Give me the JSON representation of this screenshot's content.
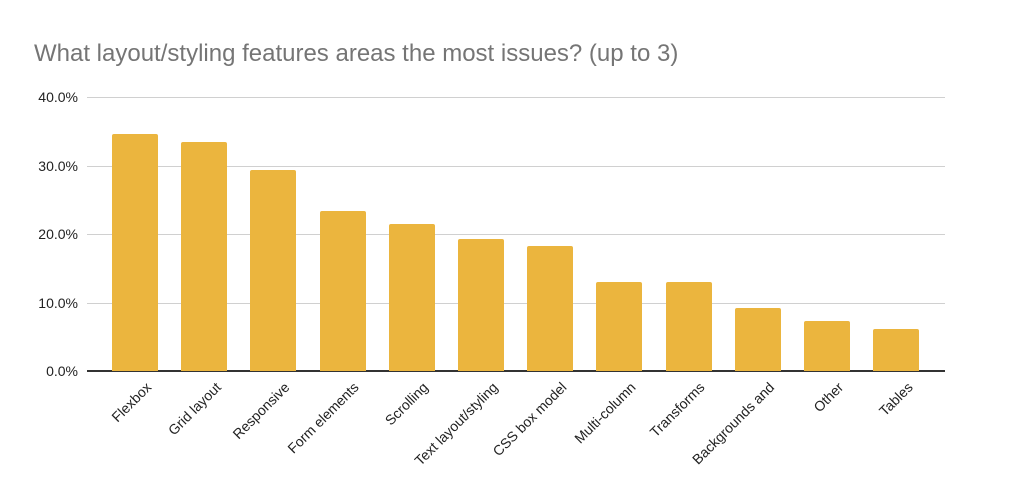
{
  "title": "What layout/styling features areas the most issues? (up to 3)",
  "colors": {
    "bar": "#ebb53e",
    "grid": "#d0d0d0",
    "axis": "#333333",
    "title": "#757575"
  },
  "y_ticks": [
    "40.0%",
    "30.0%",
    "20.0%",
    "10.0%",
    "0.0%"
  ],
  "chart_data": {
    "type": "bar",
    "title": "What layout/styling features areas the most issues? (up to 3)",
    "xlabel": "",
    "ylabel": "",
    "ylim": [
      0,
      40
    ],
    "y_tick_labels": [
      "0.0%",
      "10.0%",
      "20.0%",
      "30.0%",
      "40.0%"
    ],
    "grid": true,
    "legend": "none",
    "categories": [
      "Flexbox",
      "Grid layout",
      "Responsive",
      "Form elements",
      "Scrolling",
      "Text layout/styling",
      "CSS box model",
      "Multi-column",
      "Transforms",
      "Backgrounds and",
      "Other",
      "Tables"
    ],
    "values": [
      34.6,
      33.5,
      29.4,
      23.4,
      21.5,
      19.2,
      18.3,
      13.0,
      13.0,
      9.2,
      7.3,
      6.1
    ],
    "unit": "%"
  }
}
